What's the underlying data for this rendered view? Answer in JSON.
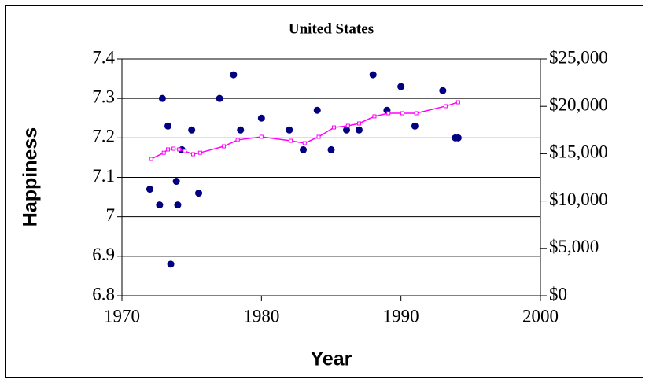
{
  "chart_data": {
    "type": "scatter",
    "title": "United States",
    "x_label": "Year",
    "y_label": "Happiness",
    "xlim": [
      1970,
      2000
    ],
    "xticks": [
      1970,
      1980,
      1990,
      2000
    ],
    "ylim": [
      6.8,
      7.4
    ],
    "yticks": [
      6.8,
      6.9,
      7,
      7.1,
      7.2,
      7.3,
      7.4
    ],
    "y2lim": [
      0,
      25000
    ],
    "y2ticks": [
      {
        "value": 0,
        "label": "$0"
      },
      {
        "value": 5000,
        "label": "$5,000"
      },
      {
        "value": 10000,
        "label": "$10,000"
      },
      {
        "value": 15000,
        "label": "$15,000"
      },
      {
        "value": 20000,
        "label": "$20,000"
      },
      {
        "value": 25000,
        "label": "$25,000"
      }
    ],
    "grid": true,
    "series": [
      {
        "type": "scatter",
        "color": "#000080",
        "x": [
          1972.0,
          1972.7,
          1972.9,
          1973.3,
          1973.5,
          1973.9,
          1974.0,
          1974.3,
          1975.0,
          1975.5,
          1977.0,
          1978.0,
          1978.5,
          1980.0,
          1982.0,
          1983.0,
          1984.0,
          1985.0,
          1986.1,
          1987.0,
          1988.0,
          1989.0,
          1990.0,
          1991.0,
          1993.0,
          1993.9,
          1994.1
        ],
        "values": [
          7.07,
          7.03,
          7.3,
          7.23,
          6.88,
          7.09,
          7.03,
          7.17,
          7.22,
          7.06,
          7.3,
          7.36,
          7.22,
          7.25,
          7.22,
          7.17,
          7.27,
          7.17,
          7.22,
          7.22,
          7.36,
          7.27,
          7.33,
          7.23,
          7.32,
          7.2,
          7.2
        ]
      },
      {
        "type": "line",
        "axis": "y2",
        "color": "#ff00ff",
        "x": [
          1972.1,
          1973.0,
          1973.3,
          1973.7,
          1974.1,
          1974.5,
          1975.1,
          1975.6,
          1977.3,
          1978.3,
          1980.0,
          1982.1,
          1983.1,
          1984.1,
          1985.2,
          1986.2,
          1987.0,
          1988.1,
          1989.1,
          1990.1,
          1991.1,
          1993.2,
          1994.1
        ],
        "values": [
          14450,
          15100,
          15450,
          15530,
          15450,
          15280,
          14950,
          15100,
          15780,
          16450,
          16780,
          16360,
          16110,
          16780,
          17770,
          17940,
          18190,
          18940,
          19270,
          19270,
          19270,
          20020,
          20430
        ]
      }
    ]
  }
}
